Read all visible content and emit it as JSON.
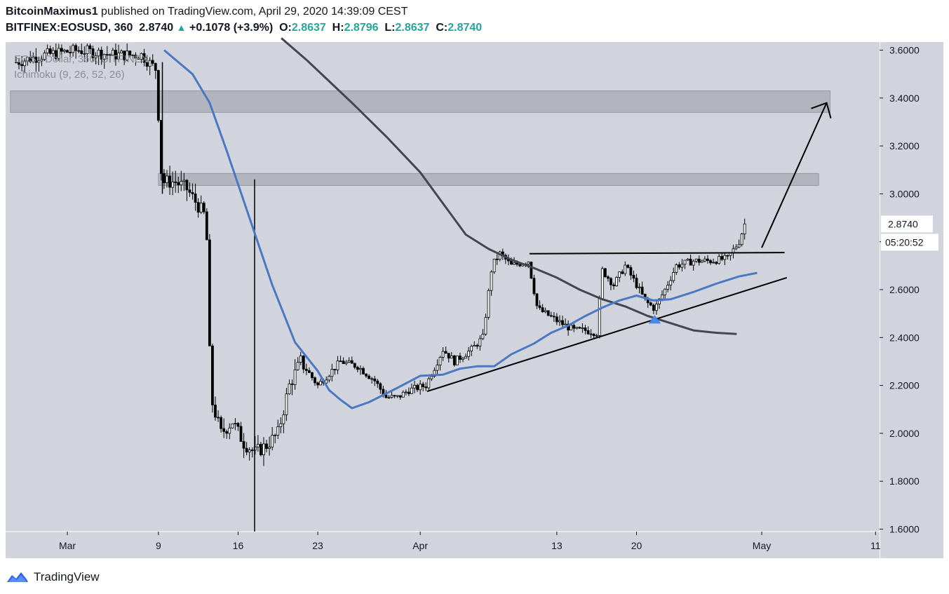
{
  "header": {
    "author": "BitcoinMaximus1",
    "published": "published on TradingView.com, April 29, 2020 14:39:09 CEST",
    "symbol": "BITFINEX:EOSUSD, 360",
    "last": "2.8740",
    "change": "+0.1078 (+3.9%)",
    "o_label": "O:",
    "o_val": "2.8637",
    "h_label": "H:",
    "h_val": "2.8796",
    "l_label": "L:",
    "l_val": "2.8637",
    "c_label": "C:",
    "c_val": "2.8740"
  },
  "overlay": {
    "line1": "EOS / Dollar, 360, BITFINEX",
    "line2": "Ichimoku (9, 26, 52, 26)"
  },
  "footer": {
    "brand": "TradingView"
  },
  "colors": {
    "plot_bg": "#d1d4dc",
    "zone": "#b2b5be",
    "fast_ma": "#4a78c2",
    "slow_ma": "#434651",
    "candle": "#000000",
    "brand_blue": "#2962ff"
  },
  "chart_data": {
    "type": "candlestick",
    "title": "EOS / Dollar, 360, BITFINEX",
    "ylim": [
      1.6,
      3.65
    ],
    "y_ticks": [
      "3.6000",
      "3.4000",
      "3.2000",
      "3.0000",
      "2.8000",
      "2.6000",
      "2.4000",
      "2.2000",
      "2.0000",
      "1.8000",
      "1.6000"
    ],
    "x_ticks": [
      "Mar",
      "9",
      "16",
      "23",
      "Apr",
      "13",
      "20",
      "May",
      "11"
    ],
    "x_tick_days": [
      29,
      37,
      44,
      51,
      60,
      72,
      79,
      90,
      100
    ],
    "last_price_label": "2.8740",
    "countdown_label": "05:20:52",
    "resistance_zones": [
      {
        "y_low": 3.34,
        "y_high": 3.43,
        "x_start_day": 24,
        "x_end_day": 96
      },
      {
        "y_low": 3.035,
        "y_high": 3.085,
        "x_start_day": 37,
        "x_end_day": 95
      }
    ],
    "trendlines": [
      {
        "name": "ascending-support",
        "points": [
          [
            60.6,
            2.175
          ],
          [
            92.2,
            2.65
          ]
        ]
      },
      {
        "name": "horizontal-resistance",
        "points": [
          [
            69.6,
            2.75
          ],
          [
            92.0,
            2.755
          ]
        ]
      },
      {
        "name": "projection-arrow",
        "points": [
          [
            90.0,
            2.775
          ],
          [
            95.7,
            3.38
          ]
        ]
      }
    ],
    "markers": [
      {
        "type": "triangle-up",
        "day": 80.6,
        "y": 2.47
      }
    ],
    "ma_fast": {
      "points": [
        [
          37.5,
          3.6
        ],
        [
          40,
          3.5
        ],
        [
          41.5,
          3.38
        ],
        [
          43,
          3.18
        ],
        [
          45,
          2.9
        ],
        [
          47,
          2.62
        ],
        [
          49,
          2.38
        ],
        [
          51,
          2.26
        ],
        [
          52,
          2.18
        ],
        [
          53,
          2.14
        ],
        [
          54,
          2.105
        ],
        [
          55.5,
          2.13
        ],
        [
          58,
          2.19
        ],
        [
          60,
          2.24
        ],
        [
          62,
          2.245
        ],
        [
          63.5,
          2.27
        ],
        [
          65,
          2.28
        ],
        [
          66.5,
          2.28
        ],
        [
          68,
          2.33
        ],
        [
          70,
          2.375
        ],
        [
          71.5,
          2.42
        ],
        [
          73,
          2.45
        ],
        [
          74.5,
          2.49
        ],
        [
          76,
          2.525
        ],
        [
          77.5,
          2.555
        ],
        [
          79,
          2.575
        ],
        [
          80.5,
          2.555
        ],
        [
          82,
          2.56
        ],
        [
          84,
          2.59
        ],
        [
          86,
          2.625
        ],
        [
          88,
          2.655
        ],
        [
          89.6,
          2.67
        ]
      ]
    },
    "ma_slow": {
      "points": [
        [
          47.8,
          3.65
        ],
        [
          50,
          3.56
        ],
        [
          52,
          3.47
        ],
        [
          54,
          3.38
        ],
        [
          57,
          3.24
        ],
        [
          60,
          3.09
        ],
        [
          62,
          2.96
        ],
        [
          64,
          2.83
        ],
        [
          66,
          2.77
        ],
        [
          68,
          2.725
        ],
        [
          70,
          2.69
        ],
        [
          72,
          2.65
        ],
        [
          74,
          2.6
        ],
        [
          76,
          2.56
        ],
        [
          78,
          2.53
        ],
        [
          80,
          2.49
        ],
        [
          82,
          2.46
        ],
        [
          84,
          2.43
        ],
        [
          86,
          2.42
        ],
        [
          87.8,
          2.415
        ]
      ]
    },
    "candles_summary": {
      "start_day": 24.5,
      "end_day": 88.5,
      "first_close": 3.55,
      "low": 1.59,
      "last_close": 2.874
    }
  }
}
